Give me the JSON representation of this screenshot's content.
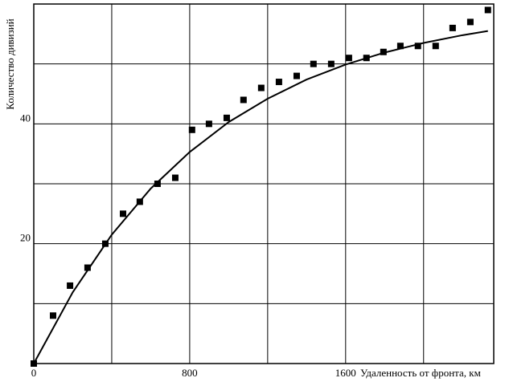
{
  "chart_data": {
    "type": "scatter",
    "x_label": "Удаленность от фронта, км",
    "y_label": "Количество дивизий",
    "xlim": [
      0,
      2360
    ],
    "ylim": [
      0,
      60
    ],
    "xticks": [
      0,
      800,
      1600
    ],
    "yticks": [
      20,
      40
    ],
    "xgrid": [
      400,
      800,
      1200,
      1600,
      2000
    ],
    "ygrid": [
      10,
      20,
      30,
      40,
      50
    ],
    "grid": true,
    "series": [
      {
        "kind": "points",
        "color": "#000000",
        "x": [
          0,
          99,
          186,
          276,
          367,
          458,
          544,
          635,
          726,
          812,
          899,
          990,
          1076,
          1167,
          1258,
          1349,
          1435,
          1526,
          1617,
          1707,
          1794,
          1881,
          1971,
          2062,
          2149,
          2240,
          2330
        ],
        "values": [
          0,
          8,
          13,
          16,
          20,
          25,
          27,
          30,
          31,
          39,
          40,
          41,
          44,
          46,
          47,
          48,
          50,
          50,
          51,
          51,
          52,
          53,
          53,
          53,
          56,
          57,
          59
        ]
      },
      {
        "kind": "curve",
        "color": "#000000",
        "x": [
          0,
          200,
          400,
          600,
          800,
          1000,
          1200,
          1400,
          1600,
          1800,
          2000,
          2200,
          2330
        ],
        "values": [
          0,
          11.9,
          21.5,
          29.2,
          35.3,
          40.3,
          44.2,
          47.4,
          49.9,
          51.9,
          53.5,
          54.8,
          55.5
        ]
      }
    ]
  }
}
